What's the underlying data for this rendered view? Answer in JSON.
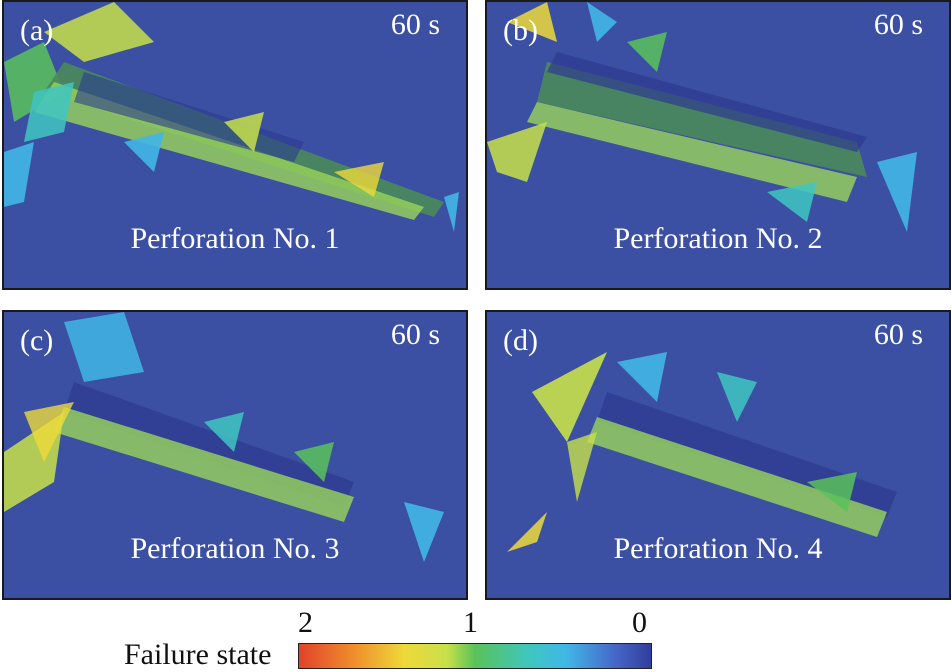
{
  "panels": [
    {
      "tag": "(a)",
      "time": "60 s",
      "caption": "Perforation No. 1"
    },
    {
      "tag": "(b)",
      "time": "60 s",
      "caption": "Perforation No. 2"
    },
    {
      "tag": "(c)",
      "time": "60 s",
      "caption": "Perforation No. 3"
    },
    {
      "tag": "(d)",
      "time": "60 s",
      "caption": "Perforation No. 4"
    }
  ],
  "legend": {
    "label": "Failure state",
    "ticks": [
      "2",
      "1",
      "0"
    ],
    "colors": [
      "#e0432a",
      "#eed93a",
      "#59c25a",
      "#41b6e6",
      "#333d9c"
    ]
  },
  "background_color": "#3b4fa3"
}
